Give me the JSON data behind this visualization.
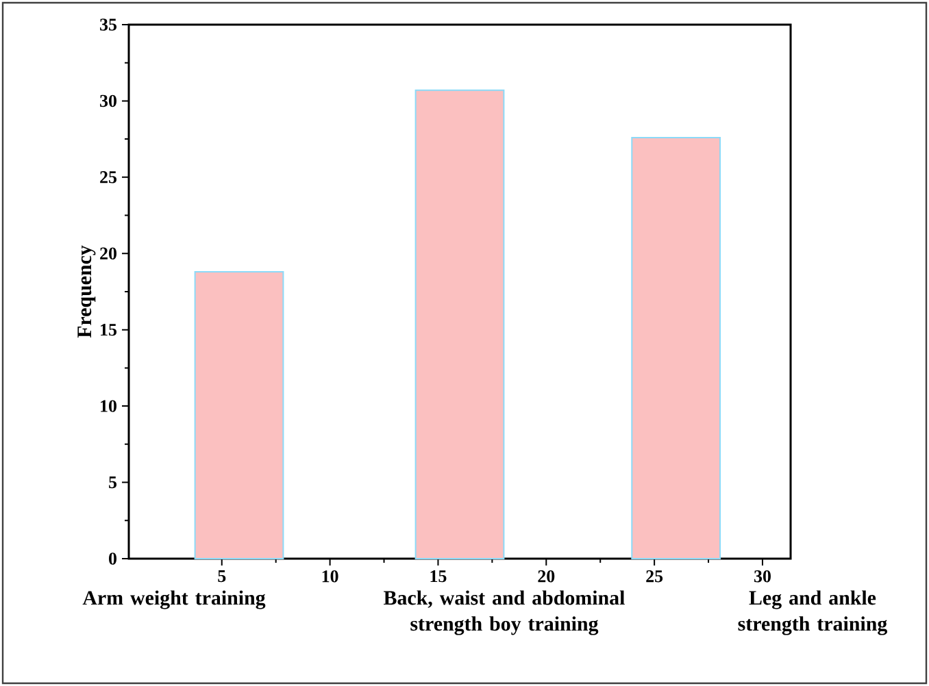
{
  "chart_data": {
    "type": "bar",
    "ylabel": "Frequency",
    "x": [
      5.8,
      16,
      26
    ],
    "values": [
      18.8,
      30.7,
      27.6
    ],
    "color": "#fbc0c0",
    "xlim": [
      0.7,
      31.3
    ],
    "xticks": [
      5,
      10,
      15,
      20,
      25,
      30
    ],
    "ylim": [
      0,
      35
    ],
    "yticks": [
      0,
      5,
      10,
      15,
      20,
      25,
      30,
      35
    ],
    "annotations": [
      "Arm weight training",
      "Back, waist and abdominal strength boy training",
      "Leg and ankle strength training"
    ]
  }
}
